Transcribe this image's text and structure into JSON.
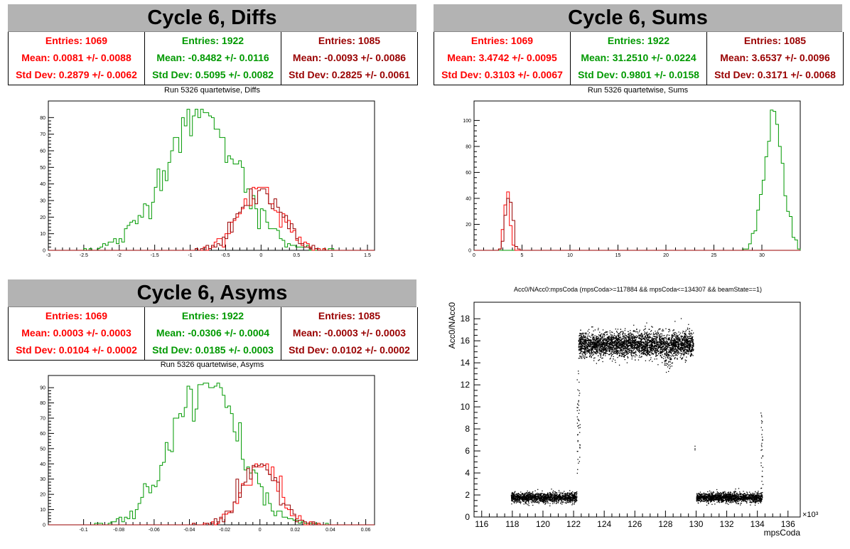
{
  "panels": {
    "diffs": {
      "banner": "Cycle 6, Diffs",
      "subtitle": "Run 5326 quartetwise, Diffs",
      "stats": [
        {
          "entries": "Entries: 1069",
          "mean": "Mean: 0.0081 +/- 0.0088",
          "std": "Std Dev: 0.2879 +/- 0.0062"
        },
        {
          "entries": "Entries: 1922",
          "mean": "Mean: -0.8482 +/- 0.0116",
          "std": "Std Dev: 0.5095 +/- 0.0082"
        },
        {
          "entries": "Entries: 1085",
          "mean": "Mean: -0.0093 +/- 0.0086",
          "std": "Std Dev: 0.2825 +/- 0.0061"
        }
      ]
    },
    "sums": {
      "banner": "Cycle 6, Sums",
      "subtitle": "Run 5326 quartetwise, Sums",
      "stats": [
        {
          "entries": "Entries: 1069",
          "mean": "Mean: 3.4742 +/- 0.0095",
          "std": "Std Dev: 0.3103 +/- 0.0067"
        },
        {
          "entries": "Entries: 1922",
          "mean": "Mean: 31.2510 +/- 0.0224",
          "std": "Std Dev: 0.9801 +/- 0.0158"
        },
        {
          "entries": "Entries: 1085",
          "mean": "Mean: 3.6537 +/- 0.0096",
          "std": "Std Dev: 0.3171 +/- 0.0068"
        }
      ]
    },
    "asyms": {
      "banner": "Cycle 6, Asyms",
      "subtitle": "Run 5326 quartetwise, Asyms",
      "stats": [
        {
          "entries": "Entries: 1069",
          "mean": "Mean: 0.0003 +/- 0.0003",
          "std": "Std Dev: 0.0104 +/- 0.0002"
        },
        {
          "entries": "Entries: 1922",
          "mean": "Mean: -0.0306 +/- 0.0004",
          "std": "Std Dev: 0.0185 +/- 0.0003"
        },
        {
          "entries": "Entries: 1085",
          "mean": "Mean: -0.0003 +/- 0.0003",
          "std": "Std Dev: 0.0102 +/- 0.0002"
        }
      ]
    },
    "scatter": {
      "title": "Acc0/NAcc0:mpsCoda (mpsCoda>=117884 && mpsCoda<=134307 && beamState==1)"
    }
  },
  "colors": {
    "red": "#ff0000",
    "green": "#009900",
    "darkred": "#990000"
  },
  "chart_data": [
    {
      "type": "bar",
      "title": "Run 5326 quartetwise, Diffs",
      "xlim": [
        -3,
        1.6
      ],
      "ylim": [
        0,
        90
      ],
      "xticks": [
        "-3",
        "-2.5",
        "-2",
        "-1.5",
        "-1",
        "-0.5",
        "0",
        "0.5",
        "1",
        "1.5"
      ],
      "yticks": [
        "0",
        "10",
        "20",
        "30",
        "40",
        "50",
        "60",
        "70",
        "80"
      ],
      "series": [
        {
          "color": "green",
          "mean": -0.848,
          "std": 0.51,
          "peak": 85
        },
        {
          "color": "red",
          "mean": 0.008,
          "std": 0.288,
          "peak": 38
        },
        {
          "color": "darkred",
          "mean": -0.009,
          "std": 0.283,
          "peak": 38
        }
      ]
    },
    {
      "type": "bar",
      "title": "Run 5326 quartetwise, Sums",
      "xlim": [
        0,
        34
      ],
      "ylim": [
        0,
        115
      ],
      "xticks": [
        "0",
        "5",
        "10",
        "15",
        "20",
        "25",
        "30"
      ],
      "yticks": [
        "0",
        "20",
        "40",
        "60",
        "80",
        "100"
      ],
      "series": [
        {
          "color": "green",
          "mean": 31.25,
          "std": 0.98,
          "peak": 108
        },
        {
          "color": "red",
          "mean": 3.474,
          "std": 0.31,
          "peak": 46
        },
        {
          "color": "darkred",
          "mean": 3.654,
          "std": 0.317,
          "peak": 40
        }
      ]
    },
    {
      "type": "bar",
      "title": "Run 5326 quartetwise, Asyms",
      "xlim": [
        -0.12,
        0.065
      ],
      "ylim": [
        0,
        98
      ],
      "xticks": [
        "-0.1",
        "-0.08",
        "-0.06",
        "-0.04",
        "-0.02",
        "0",
        "0.02",
        "0.04",
        "0.06"
      ],
      "yticks": [
        "0",
        "10",
        "20",
        "30",
        "40",
        "50",
        "60",
        "70",
        "80",
        "90"
      ],
      "series": [
        {
          "color": "green",
          "mean": -0.0306,
          "std": 0.0185,
          "peak": 93
        },
        {
          "color": "red",
          "mean": 0.0003,
          "std": 0.0104,
          "peak": 40
        },
        {
          "color": "darkred",
          "mean": -0.0003,
          "std": 0.0102,
          "peak": 40
        }
      ]
    },
    {
      "type": "scatter",
      "title": "Acc0/NAcc0:mpsCoda (mpsCoda>=117884 && mpsCoda<=134307 && beamState==1)",
      "xlabel": "mpsCoda",
      "ylabel": "Acc0/NAcc0",
      "xlim": [
        115500,
        136800
      ],
      "ylim": [
        0,
        19.5
      ],
      "xticks": [
        "116",
        "118",
        "120",
        "122",
        "124",
        "126",
        "128",
        "130",
        "132",
        "134",
        "136"
      ],
      "yticks": [
        "0",
        "2",
        "4",
        "6",
        "8",
        "10",
        "12",
        "14",
        "16",
        "18"
      ],
      "xexponent": "×10³",
      "segments": [
        {
          "x": [
            117900,
            122200
          ],
          "level": 1.8
        },
        {
          "x": [
            122300,
            129800
          ],
          "level": 15.7
        },
        {
          "x": [
            130000,
            134300
          ],
          "level": 1.8
        }
      ]
    }
  ]
}
